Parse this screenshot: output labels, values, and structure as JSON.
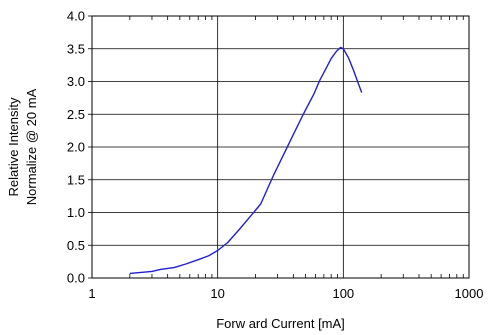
{
  "chart_data": {
    "type": "line",
    "title": "",
    "xlabel": "Forw ard Current [mA]",
    "ylabel": [
      "Relative Intensity",
      "Normalize @ 20 mA"
    ],
    "x_scale": "log",
    "xlim": [
      1,
      1000
    ],
    "ylim": [
      0,
      4
    ],
    "x_ticks": [
      1,
      10,
      100,
      1000
    ],
    "x_tick_labels": [
      "1",
      "10",
      "100",
      "1000"
    ],
    "y_ticks": [
      0,
      0.5,
      1,
      1.5,
      2,
      2.5,
      3,
      3.5,
      4
    ],
    "y_tick_labels": [
      "0.0",
      "0.5",
      "1.0",
      "1.5",
      "2.0",
      "2.5",
      "3.0",
      "3.5",
      "4.0"
    ],
    "grid": {
      "x_major": true,
      "y_major": true,
      "x_minor_ticks": true
    },
    "legend": "none",
    "colors": {
      "series": "#2020d0",
      "grid": "#000000",
      "axes": "#000000"
    },
    "series": [
      {
        "x": [
          2,
          3,
          3.5,
          4.5,
          5.5,
          7,
          8.5,
          10,
          12,
          15,
          18,
          22,
          28,
          35,
          40,
          48,
          58,
          65,
          72,
          80,
          88,
          95,
          100,
          110,
          120,
          140
        ],
        "y": [
          0.07,
          0.1,
          0.13,
          0.16,
          0.21,
          0.28,
          0.34,
          0.42,
          0.54,
          0.75,
          0.93,
          1.13,
          1.58,
          1.96,
          2.19,
          2.5,
          2.8,
          3.02,
          3.18,
          3.35,
          3.46,
          3.52,
          3.5,
          3.36,
          3.18,
          2.83
        ]
      }
    ]
  }
}
